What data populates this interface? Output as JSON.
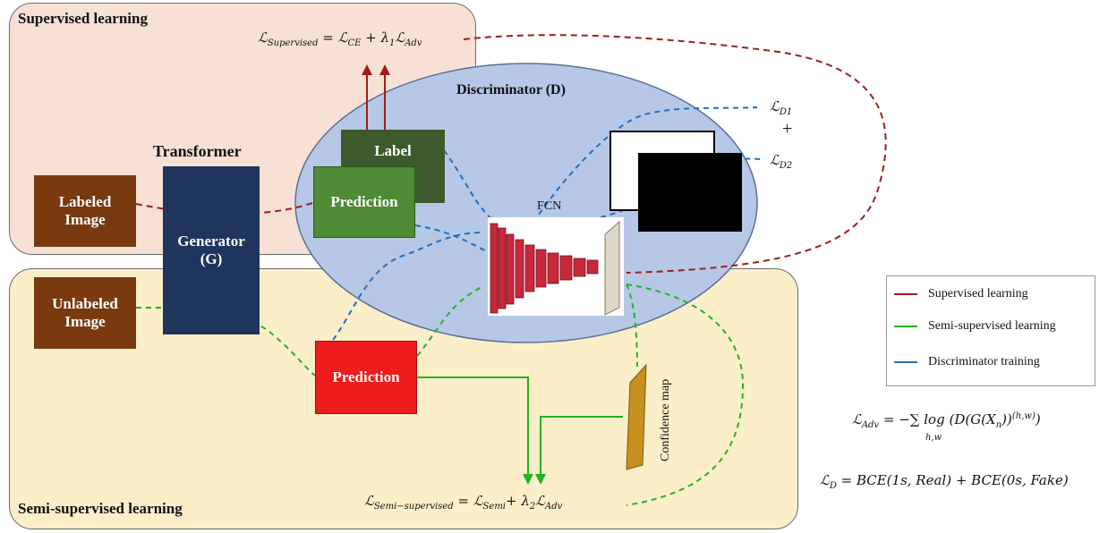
{
  "regions": {
    "supervised": "Supervised learning",
    "semi_supervised": "Semi-supervised learning"
  },
  "discriminator_title": "Discriminator (D)",
  "transformer_label": "Transformer",
  "fcn_label": "FCN",
  "boxes": {
    "labeled_image": "Labeled Image",
    "unlabeled_image": "Unlabeled Image",
    "generator_line1": "Generator",
    "generator_line2": "(G)",
    "label": "Label",
    "prediction_top": "Prediction",
    "prediction_bottom": "Prediction"
  },
  "confidence_map_label": "Confidence map",
  "formulas": {
    "loss_supervised": {
      "L": "ℒ",
      "sub": "Supervised",
      "rest1": " = ℒ",
      "sub2": "CE",
      "rest2": "  + λ",
      "sub3": "1",
      "rest3": "ℒ",
      "sub4": "Adv"
    },
    "loss_semi": {
      "L": "ℒ",
      "sub": "Semi−supervised",
      "rest1": " = ℒ",
      "sub2": "Semi",
      "rest2": "+ λ",
      "sub3": "2",
      "rest3": "ℒ",
      "sub4": "Adv"
    },
    "loss_d1": {
      "L": "ℒ",
      "sub": "D1"
    },
    "plus": "+",
    "loss_d2": {
      "L": "ℒ",
      "sub": "D2"
    },
    "loss_adv": {
      "L": "ℒ",
      "sub": "Adv",
      "rest": " = −∑ log",
      "sum_sub": "h,w",
      "paren": "(D(G(X",
      "xn_sub": "n",
      "paren_end": "))",
      "sup": "(h,w)",
      "close": ")"
    },
    "loss_d": {
      "L": "ℒ",
      "sub": "D",
      "rest": " = BCE(1s, Real) + BCE(0s, Fake)"
    }
  },
  "legend": [
    {
      "label": "Supervised learning",
      "color": "#a01c1c"
    },
    {
      "label": "Semi-supervised learning",
      "color": "#22b322"
    },
    {
      "label": "Discriminator  training",
      "color": "#1f6fbf"
    }
  ],
  "colors": {
    "supervised_region": "#f7e1d4",
    "semi_region": "#fbeec9",
    "discriminator_fill": "#b6c8e6",
    "image_box": "#7a3a10",
    "generator_box": "#1f355e",
    "label_box": "#3c5a2c",
    "prediction_top_box": "#4f8a34",
    "prediction_bottom_box": "#ee1c1c"
  }
}
